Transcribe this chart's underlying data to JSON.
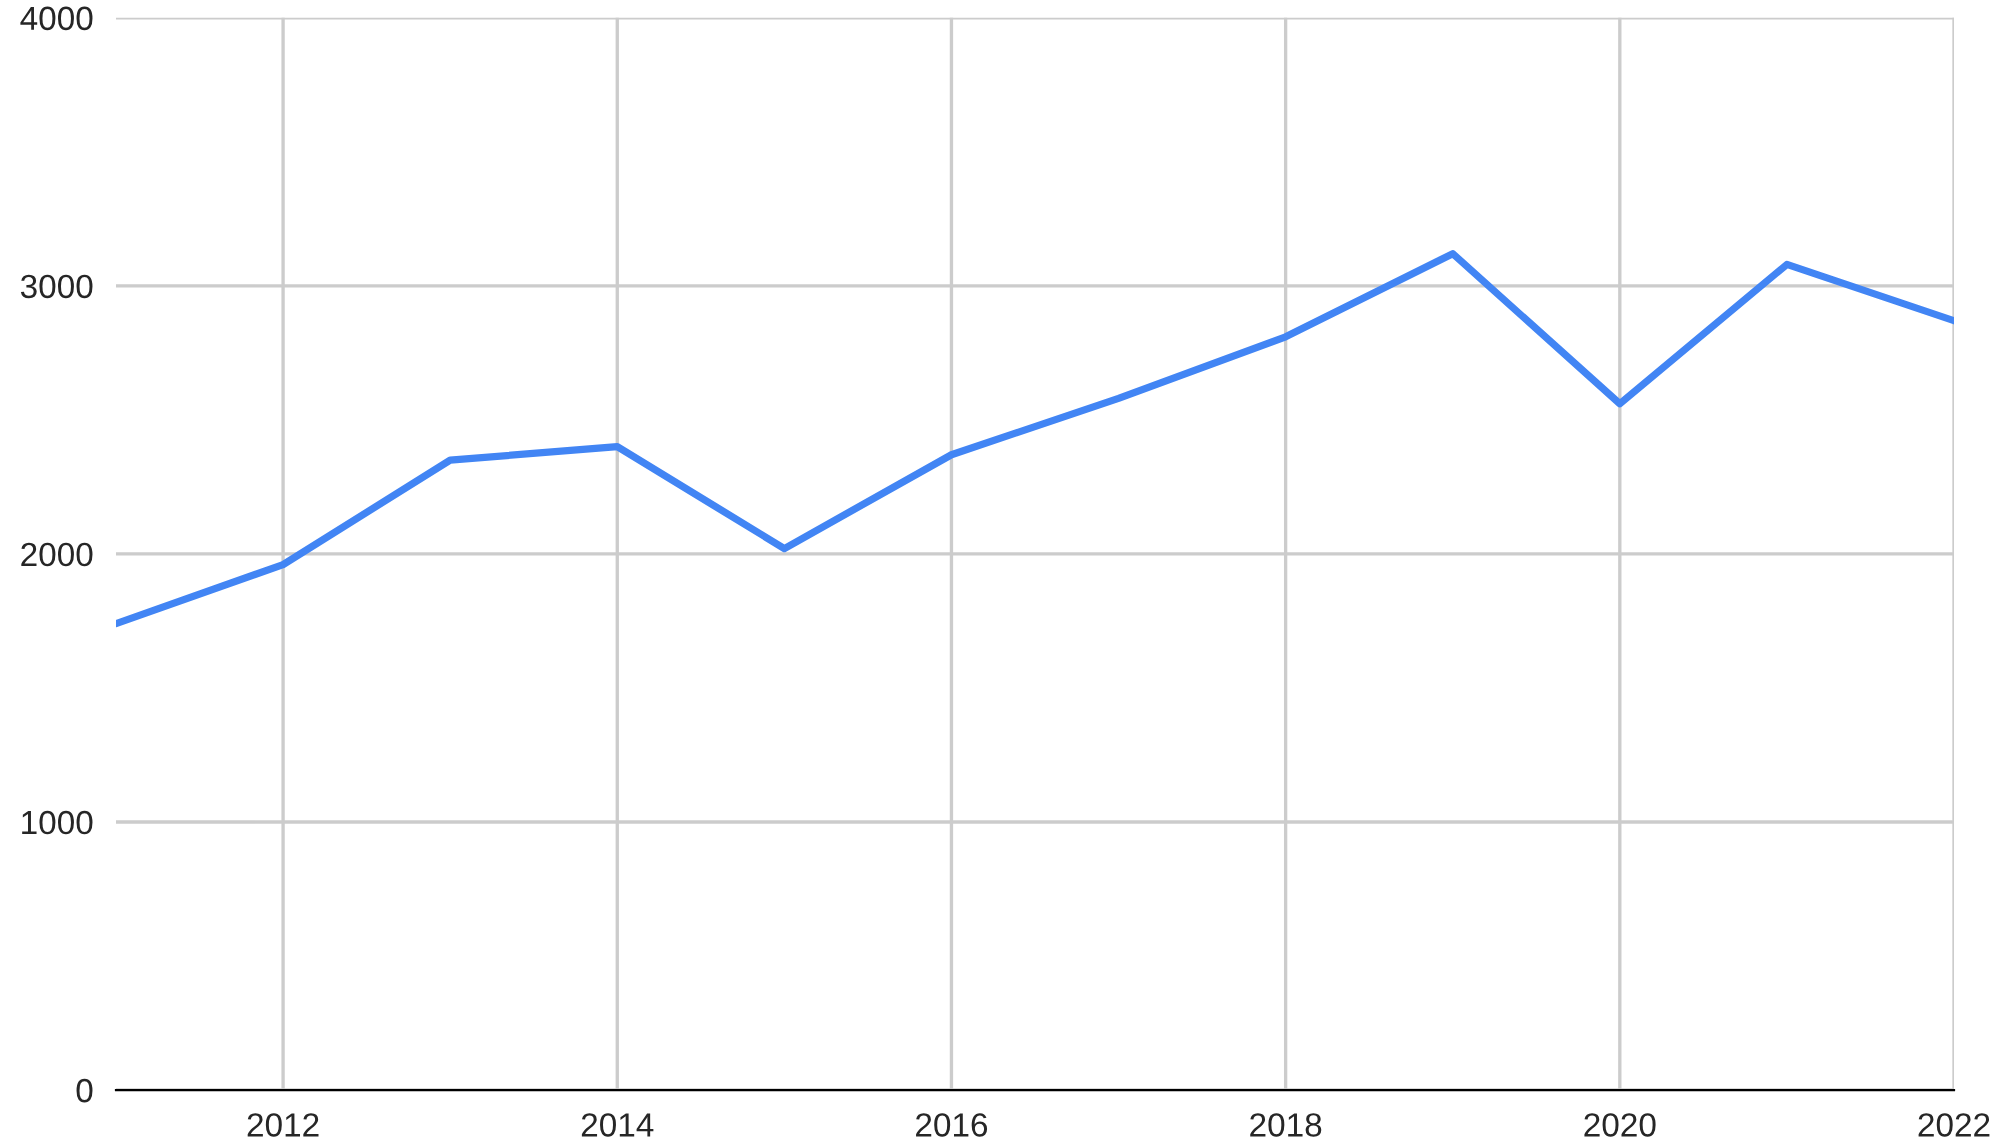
{
  "chart_data": {
    "type": "line",
    "x": [
      2011,
      2012,
      2013,
      2014,
      2015,
      2016,
      2017,
      2018,
      2019,
      2020,
      2021,
      2022
    ],
    "series": [
      {
        "color": "#4285f4",
        "values": [
          1740,
          1960,
          2350,
          2400,
          2020,
          2370,
          2580,
          2810,
          3120,
          2560,
          3080,
          2870
        ]
      }
    ],
    "xlim": [
      2011,
      2022
    ],
    "xticks": [
      2012,
      2014,
      2016,
      2018,
      2020,
      2022
    ],
    "ylim": [
      0,
      4000
    ],
    "yticks": [
      0,
      1000,
      2000,
      3000,
      4000
    ],
    "grid": true,
    "marker": "none",
    "line_style": "solid"
  }
}
